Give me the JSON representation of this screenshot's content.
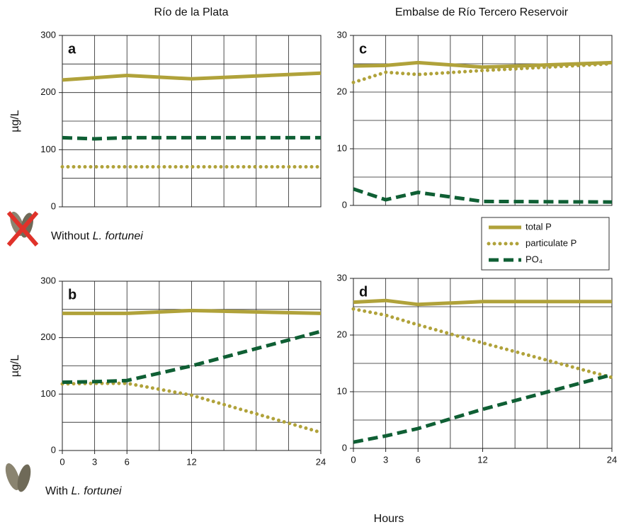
{
  "column_titles": [
    "Río de la Plata",
    "Embalse de Río Tercero Reservoir"
  ],
  "xlabel": "Hours",
  "row_labels": [
    {
      "prefix": "Without",
      "species": "L. fortunei"
    },
    {
      "prefix": "With",
      "species": "L. fortunei"
    }
  ],
  "chart_data": [
    {
      "type": "line",
      "label": "a",
      "ylabel": "µg/L",
      "x": [
        0,
        3,
        6,
        12,
        24
      ],
      "xlim": [
        0,
        24
      ],
      "ylim": [
        0,
        300
      ],
      "yticks": [
        0,
        100,
        200,
        300
      ],
      "grid": true,
      "minor_grid": true,
      "series": [
        {
          "name": "total P",
          "color": "#b0a23a",
          "style": "solid",
          "values": [
            222,
            226,
            230,
            224,
            234
          ]
        },
        {
          "name": "particulate P",
          "color": "#b0a23a",
          "style": "dotted",
          "values": [
            70,
            70,
            70,
            70,
            70
          ]
        },
        {
          "name": "PO₄",
          "color": "#0f5f34",
          "style": "dashed",
          "values": [
            121,
            119,
            121,
            121,
            121
          ]
        }
      ]
    },
    {
      "type": "line",
      "label": "b",
      "ylabel": "µg/L",
      "x": [
        0,
        3,
        6,
        12,
        24
      ],
      "xlim": [
        0,
        24
      ],
      "xticks": [
        0,
        3,
        6,
        12,
        24
      ],
      "ylim": [
        0,
        300
      ],
      "yticks": [
        0,
        100,
        200,
        300
      ],
      "grid": true,
      "minor_grid": true,
      "series": [
        {
          "name": "total P",
          "color": "#b0a23a",
          "style": "solid",
          "values": [
            243,
            243,
            243,
            248,
            243
          ]
        },
        {
          "name": "particulate P",
          "color": "#b0a23a",
          "style": "dotted",
          "values": [
            118,
            119,
            119,
            98,
            32
          ]
        },
        {
          "name": "PO₄",
          "color": "#0f5f34",
          "style": "dashed",
          "values": [
            121,
            122,
            124,
            150,
            211
          ]
        }
      ]
    },
    {
      "type": "line",
      "label": "c",
      "x": [
        0,
        3,
        6,
        12,
        24
      ],
      "xlim": [
        0,
        24
      ],
      "ylim": [
        0,
        30
      ],
      "yticks": [
        0,
        10,
        20,
        30
      ],
      "grid": true,
      "minor_grid": true,
      "series": [
        {
          "name": "total P",
          "color": "#b0a23a",
          "style": "solid",
          "values": [
            24.6,
            24.7,
            25.2,
            24.4,
            25.2
          ]
        },
        {
          "name": "particulate P",
          "color": "#b0a23a",
          "style": "dotted",
          "values": [
            21.7,
            23.5,
            23.1,
            23.8,
            25.0
          ]
        },
        {
          "name": "PO₄",
          "color": "#0f5f34",
          "style": "dashed",
          "values": [
            2.9,
            1.0,
            2.3,
            0.7,
            0.6
          ]
        }
      ]
    },
    {
      "type": "line",
      "label": "d",
      "x": [
        0,
        3,
        6,
        12,
        24
      ],
      "xlim": [
        0,
        24
      ],
      "xticks": [
        0,
        3,
        6,
        12,
        24
      ],
      "ylim": [
        0,
        30
      ],
      "yticks": [
        0,
        10,
        20,
        30
      ],
      "grid": true,
      "minor_grid": true,
      "series": [
        {
          "name": "total P",
          "color": "#b0a23a",
          "style": "solid",
          "values": [
            25.8,
            26.1,
            25.4,
            25.9,
            25.9
          ]
        },
        {
          "name": "particulate P",
          "color": "#b0a23a",
          "style": "dotted",
          "values": [
            24.6,
            23.5,
            21.8,
            18.6,
            12.5
          ]
        },
        {
          "name": "PO₄",
          "color": "#0f5f34",
          "style": "dashed",
          "values": [
            1.1,
            2.2,
            3.5,
            6.9,
            13.0
          ]
        }
      ]
    }
  ]
}
